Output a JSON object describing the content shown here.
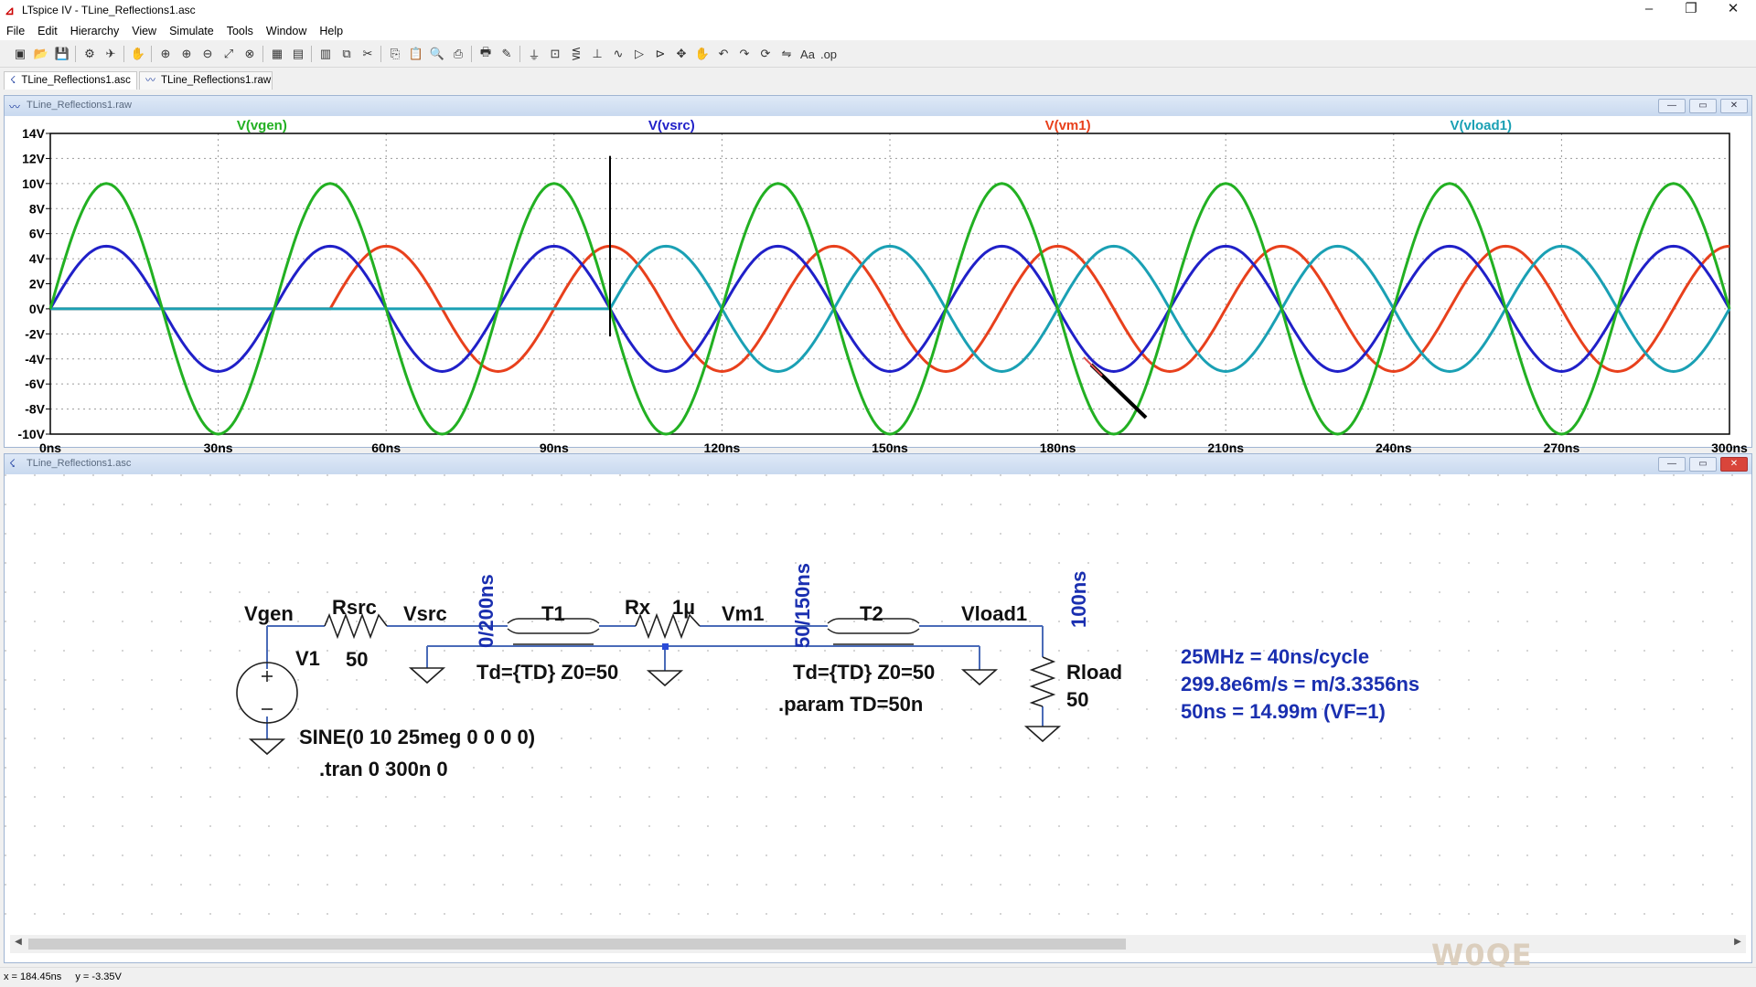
{
  "window": {
    "title": "LTspice IV - TLine_Reflections1.asc",
    "controls": {
      "minimize": "–",
      "restore": "❐",
      "close": "✕"
    }
  },
  "menu": [
    "File",
    "Edit",
    "Hierarchy",
    "View",
    "Simulate",
    "Tools",
    "Window",
    "Help"
  ],
  "toolbar_icons": [
    "new-schematic",
    "open",
    "save",
    "control-panel",
    "run",
    "halt",
    "zoom-in",
    "zoom-in-2",
    "zoom-out",
    "zoom-full",
    "autoscale",
    "grid",
    "tile-horizontal",
    "tile-vertical",
    "cascade",
    "cut",
    "copy",
    "paste",
    "find",
    "print-setup",
    "print",
    "wire",
    "ground",
    "label-net",
    "resistor",
    "capacitor",
    "inductor",
    "diode",
    "component",
    "move",
    "drag",
    "undo",
    "redo",
    "rotate",
    "mirror",
    "text",
    "spice-directive"
  ],
  "tabs": [
    {
      "label": "TLine_Reflections1.asc",
      "icon": "schematic-icon"
    },
    {
      "label": "TLine_Reflections1.raw",
      "icon": "waveform-icon"
    }
  ],
  "plot_window": {
    "title": "TLine_Reflections1.raw"
  },
  "schematic_window": {
    "title": "TLine_Reflections1.asc"
  },
  "chart_data": {
    "type": "line",
    "x_unit": "ns",
    "xlim": [
      0,
      300
    ],
    "ylim": [
      -10,
      14
    ],
    "x_ticks": [
      "0ns",
      "30ns",
      "60ns",
      "90ns",
      "120ns",
      "150ns",
      "180ns",
      "210ns",
      "240ns",
      "270ns",
      "300ns"
    ],
    "y_ticks": [
      "14V",
      "12V",
      "10V",
      "8V",
      "6V",
      "4V",
      "2V",
      "0V",
      "-2V",
      "-4V",
      "-6V",
      "-8V",
      "-10V"
    ],
    "grid": true,
    "cursor_x": 100,
    "series": [
      {
        "name": "V(vgen)",
        "color": "#22b022",
        "amplitude": 10,
        "delay": 0,
        "freq_mhz": 25
      },
      {
        "name": "V(vsrc)",
        "color": "#2020c8",
        "amplitude": 5,
        "delay": 0,
        "freq_mhz": 25
      },
      {
        "name": "V(vm1)",
        "color": "#e8401c",
        "amplitude": 5,
        "delay": 50,
        "freq_mhz": 25
      },
      {
        "name": "V(vload1)",
        "color": "#1aa0b4",
        "amplitude": 5,
        "delay": 100,
        "freq_mhz": 25
      }
    ]
  },
  "schematic": {
    "nodes": {
      "vgen": "Vgen",
      "vsrc": "Vsrc",
      "vm1": "Vm1",
      "vload1": "Vload1"
    },
    "rsrc": {
      "name": "Rsrc",
      "value": "50"
    },
    "rx": {
      "name": "Rx",
      "value": "1µ"
    },
    "rload": {
      "name": "Rload",
      "value": "50"
    },
    "v1": {
      "name": "V1",
      "value": "SINE(0 10 25meg 0 0 0 0)"
    },
    "t1": {
      "name": "T1",
      "params": "Td={TD} Z0=50",
      "label": "0/200ns"
    },
    "t2": {
      "name": "T2",
      "params": "Td={TD} Z0=50",
      "label": "50/150ns"
    },
    "load_label": "100ns",
    "directives": {
      "tran": ".tran 0 300n 0",
      "param": ".param TD=50n"
    },
    "notes": [
      "25MHz = 40ns/cycle",
      "299.8e6m/s = m/3.3356ns",
      "50ns = 14.99m (VF=1)"
    ]
  },
  "status": {
    "x": "x = 184.45ns",
    "y": "y = -3.35V"
  },
  "watermark": "W0QE"
}
